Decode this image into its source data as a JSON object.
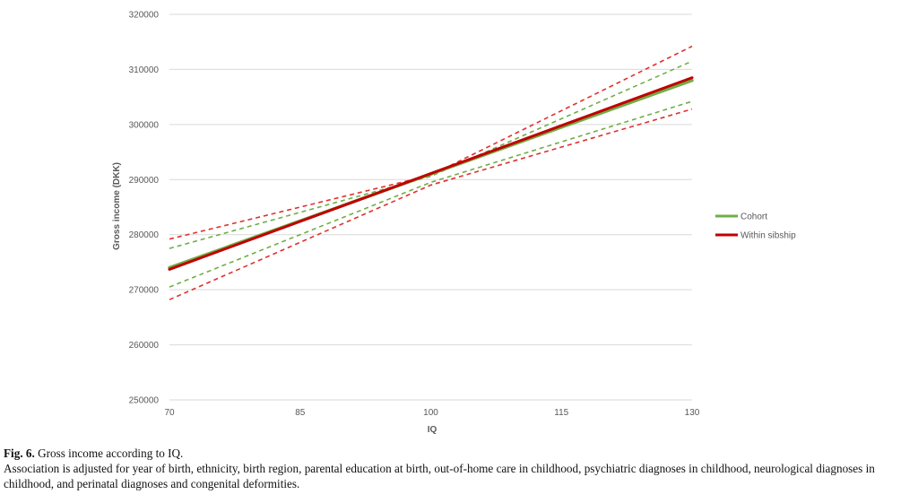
{
  "chart_data": {
    "type": "line",
    "xlabel": "IQ",
    "ylabel": "Gross income (DKK)",
    "xlim": [
      70,
      130
    ],
    "ylim": [
      250000,
      320000
    ],
    "x_ticks": [
      "70",
      "85",
      "100",
      "115",
      "130"
    ],
    "y_ticks": [
      "250000",
      "260000",
      "270000",
      "280000",
      "290000",
      "300000",
      "310000",
      "320000"
    ],
    "grid": "horizontal",
    "legend_placement": "right",
    "series": [
      {
        "name": "Cohort",
        "color": "#70ad47",
        "x": [
          70,
          130
        ],
        "y": [
          274000,
          308000
        ]
      },
      {
        "name": "Within sibship",
        "color": "#c00000",
        "x": [
          70,
          130
        ],
        "y": [
          273700,
          308500
        ]
      }
    ],
    "intervals": [
      {
        "color": "#70ad47",
        "lower": [
          [
            70,
            270500
          ],
          [
            100,
            289500
          ],
          [
            130,
            304200
          ]
        ],
        "upper": [
          [
            70,
            277500
          ],
          [
            100,
            290600
          ],
          [
            130,
            311500
          ]
        ]
      },
      {
        "color": "#e03030",
        "lower": [
          [
            70,
            268200
          ],
          [
            100,
            289000
          ],
          [
            130,
            302800
          ]
        ],
        "upper": [
          [
            70,
            279200
          ],
          [
            100,
            290800
          ],
          [
            130,
            314200
          ]
        ]
      }
    ]
  },
  "caption": {
    "fig_label": "Fig. 6.",
    "title": "Gross income according to IQ.",
    "note": "Association is adjusted for year of birth, ethnicity, birth region, parental education at birth, out-of-home care in childhood, psychiatric diagnoses in childhood, neurological diagnoses in childhood, and perinatal diagnoses and congenital deformities."
  }
}
